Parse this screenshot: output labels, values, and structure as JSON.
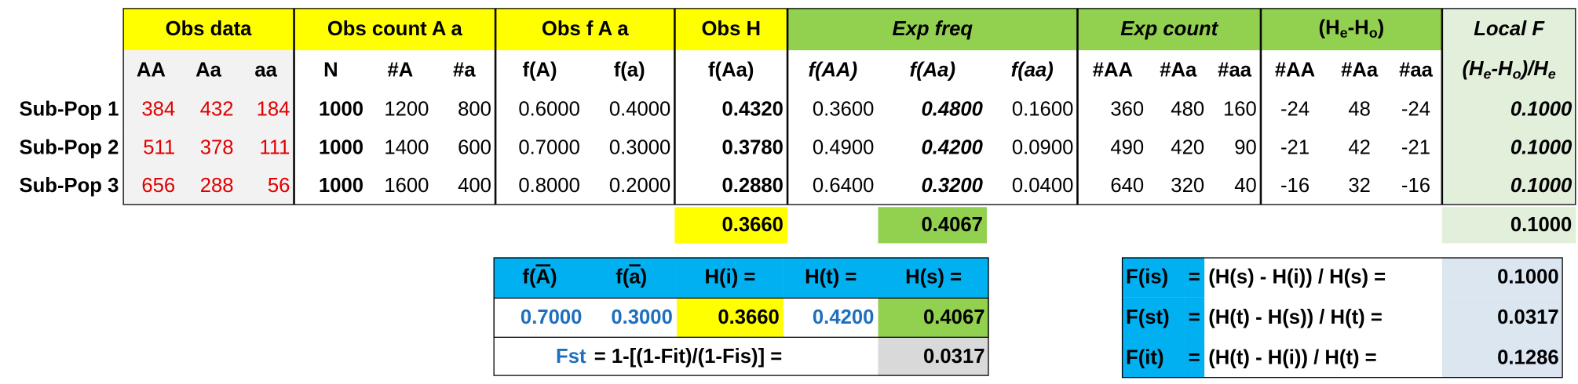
{
  "top_table": {
    "groups": [
      "Obs data",
      "Obs count A a",
      "Obs f A a",
      "Obs H",
      "Exp freq",
      "Exp count",
      [
        {
          "text": "(H"
        },
        {
          "text": "e",
          "sub": true
        },
        {
          "text": "-H"
        },
        {
          "text": "o",
          "sub": true
        },
        {
          "text": ")"
        }
      ],
      "Local F"
    ],
    "columns": [
      "AA",
      "Aa",
      "aa",
      "N",
      "#A",
      "#a",
      "f(A)",
      "f(a)",
      "f(Aa)",
      "f(AA)",
      "f(Aa)",
      "f(aa)",
      "#AA",
      "#Aa",
      "#aa",
      "#AA",
      "#Aa",
      "#aa",
      [
        {
          "text": "(H"
        },
        {
          "text": "e",
          "sub": true
        },
        {
          "text": "-H"
        },
        {
          "text": "o",
          "sub": true
        },
        {
          "text": ")/H"
        },
        {
          "text": "e",
          "sub": true
        }
      ]
    ],
    "rows": [
      {
        "label": "Sub-Pop 1",
        "values": [
          "384",
          "432",
          "184",
          "1000",
          "1200",
          "800",
          "0.6000",
          "0.4000",
          "0.4320",
          "0.3600",
          "0.4800",
          "0.1600",
          "360",
          "480",
          "160",
          "-24",
          "48",
          "-24",
          "0.1000"
        ]
      },
      {
        "label": "Sub-Pop 2",
        "values": [
          "511",
          "378",
          "111",
          "1000",
          "1400",
          "600",
          "0.7000",
          "0.3000",
          "0.3780",
          "0.4900",
          "0.4200",
          "0.0900",
          "490",
          "420",
          "90",
          "-21",
          "42",
          "-21",
          "0.1000"
        ]
      },
      {
        "label": "Sub-Pop 3",
        "values": [
          "656",
          "288",
          "56",
          "1000",
          "1600",
          "400",
          "0.8000",
          "0.2000",
          "0.2880",
          "0.6400",
          "0.3200",
          "0.0400",
          "640",
          "320",
          "40",
          "-16",
          "32",
          "-16",
          "0.1000"
        ]
      }
    ],
    "totals": {
      "obs_h": "0.3660",
      "exp_f_aa": "0.4067",
      "local_f": "0.1000"
    }
  },
  "mean_table": {
    "headers": [
      [
        {
          "text": "f("
        },
        {
          "text": "A",
          "over": true
        },
        {
          "text": ")"
        }
      ],
      [
        {
          "text": "f("
        },
        {
          "text": "a",
          "over": true
        },
        {
          "text": ")"
        }
      ],
      "H(i) =",
      "H(t) =",
      "H(s) ="
    ],
    "values": [
      "0.7000",
      "0.3000",
      "0.3660",
      "0.4200",
      "0.4067"
    ],
    "fst_label": "Fst",
    "fst_formula": "= 1-[(1-Fit)/(1-Fis)] =",
    "fst_value": "0.0317"
  },
  "f_table": {
    "rows": [
      {
        "label": "F(is)",
        "eq": "=",
        "formula": "(H(s) - H(i)) / H(s) =",
        "value": "0.1000"
      },
      {
        "label": "F(st)",
        "eq": "=",
        "formula": "(H(t) - H(s)) / H(t) =",
        "value": "0.0317"
      },
      {
        "label": "F(it)",
        "eq": "=",
        "formula": "(H(t) - H(i)) / H(t) =",
        "value": "0.1286"
      }
    ]
  }
}
